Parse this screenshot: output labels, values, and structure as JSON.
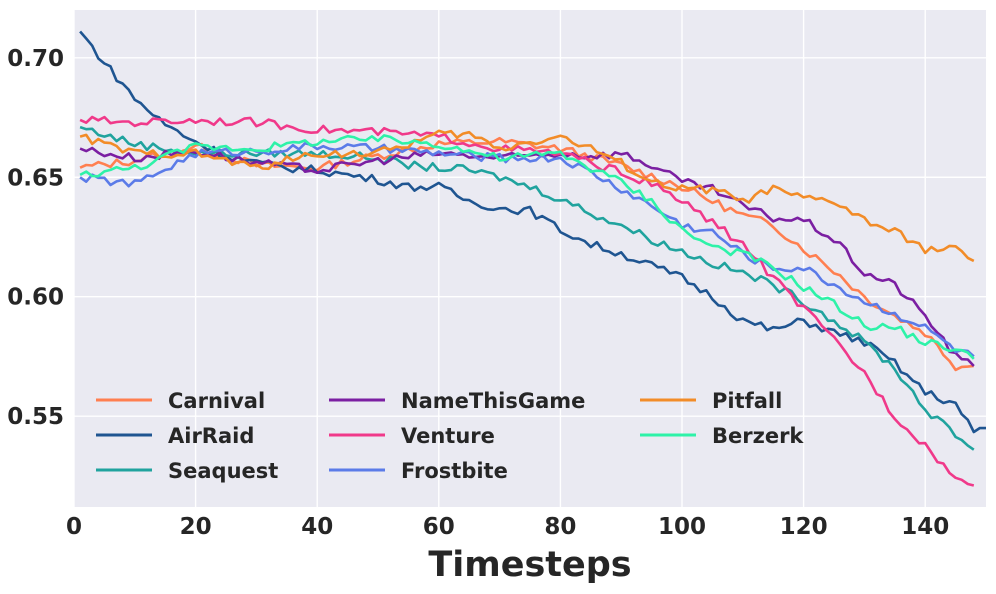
{
  "chart_data": {
    "type": "line",
    "title": "",
    "xlabel": "Timesteps",
    "ylabel": "",
    "xlim": [
      0,
      150
    ],
    "ylim": [
      0.512,
      0.72
    ],
    "xticks": [
      0,
      20,
      40,
      60,
      80,
      100,
      120,
      140
    ],
    "yticks": [
      0.55,
      0.6,
      0.65,
      0.7
    ],
    "ytick_labels": [
      "0.55",
      "0.60",
      "0.65",
      "0.70"
    ],
    "grid": true,
    "legend_placement": "lower-left, 3 columns",
    "background": "#eaeaf2",
    "series": [
      {
        "name": "Carnival",
        "color": "#ff7f50",
        "points": [
          [
            1,
            0.654
          ],
          [
            10,
            0.657
          ],
          [
            20,
            0.663
          ],
          [
            30,
            0.655
          ],
          [
            40,
            0.654
          ],
          [
            50,
            0.659
          ],
          [
            60,
            0.664
          ],
          [
            70,
            0.665
          ],
          [
            80,
            0.662
          ],
          [
            90,
            0.655
          ],
          [
            100,
            0.646
          ],
          [
            110,
            0.634
          ],
          [
            115,
            0.63
          ],
          [
            120,
            0.62
          ],
          [
            125,
            0.611
          ],
          [
            130,
            0.6
          ],
          [
            135,
            0.592
          ],
          [
            140,
            0.585
          ],
          [
            145,
            0.571
          ],
          [
            148,
            0.571
          ]
        ]
      },
      {
        "name": "AirRaid",
        "color": "#1f5591",
        "points": [
          [
            1,
            0.711
          ],
          [
            5,
            0.698
          ],
          [
            10,
            0.683
          ],
          [
            15,
            0.672
          ],
          [
            20,
            0.665
          ],
          [
            25,
            0.659
          ],
          [
            30,
            0.656
          ],
          [
            35,
            0.654
          ],
          [
            40,
            0.653
          ],
          [
            45,
            0.651
          ],
          [
            50,
            0.649
          ],
          [
            55,
            0.646
          ],
          [
            60,
            0.646
          ],
          [
            65,
            0.64
          ],
          [
            70,
            0.637
          ],
          [
            75,
            0.636
          ],
          [
            80,
            0.628
          ],
          [
            85,
            0.622
          ],
          [
            90,
            0.618
          ],
          [
            95,
            0.613
          ],
          [
            100,
            0.608
          ],
          [
            105,
            0.6
          ],
          [
            110,
            0.59
          ],
          [
            115,
            0.586
          ],
          [
            120,
            0.59
          ],
          [
            125,
            0.585
          ],
          [
            130,
            0.581
          ],
          [
            135,
            0.572
          ],
          [
            140,
            0.56
          ],
          [
            145,
            0.555
          ],
          [
            148,
            0.543
          ],
          [
            150,
            0.545
          ]
        ]
      },
      {
        "name": "Seaquest",
        "color": "#20a39e",
        "points": [
          [
            1,
            0.671
          ],
          [
            10,
            0.664
          ],
          [
            20,
            0.66
          ],
          [
            30,
            0.66
          ],
          [
            40,
            0.66
          ],
          [
            50,
            0.658
          ],
          [
            55,
            0.655
          ],
          [
            60,
            0.654
          ],
          [
            65,
            0.653
          ],
          [
            70,
            0.65
          ],
          [
            75,
            0.646
          ],
          [
            80,
            0.641
          ],
          [
            85,
            0.635
          ],
          [
            90,
            0.63
          ],
          [
            95,
            0.624
          ],
          [
            100,
            0.619
          ],
          [
            105,
            0.614
          ],
          [
            110,
            0.61
          ],
          [
            115,
            0.605
          ],
          [
            120,
            0.598
          ],
          [
            125,
            0.59
          ],
          [
            130,
            0.581
          ],
          [
            135,
            0.57
          ],
          [
            140,
            0.553
          ],
          [
            145,
            0.542
          ],
          [
            148,
            0.536
          ]
        ]
      },
      {
        "name": "NameThisGame",
        "color": "#7b1fa2",
        "points": [
          [
            1,
            0.662
          ],
          [
            10,
            0.658
          ],
          [
            20,
            0.661
          ],
          [
            30,
            0.656
          ],
          [
            40,
            0.653
          ],
          [
            50,
            0.657
          ],
          [
            60,
            0.66
          ],
          [
            70,
            0.658
          ],
          [
            80,
            0.66
          ],
          [
            85,
            0.659
          ],
          [
            90,
            0.66
          ],
          [
            95,
            0.655
          ],
          [
            100,
            0.648
          ],
          [
            105,
            0.645
          ],
          [
            110,
            0.638
          ],
          [
            115,
            0.633
          ],
          [
            120,
            0.632
          ],
          [
            125,
            0.624
          ],
          [
            130,
            0.61
          ],
          [
            135,
            0.605
          ],
          [
            140,
            0.592
          ],
          [
            145,
            0.575
          ],
          [
            148,
            0.571
          ]
        ]
      },
      {
        "name": "Venture",
        "color": "#f0398a",
        "points": [
          [
            1,
            0.674
          ],
          [
            10,
            0.673
          ],
          [
            20,
            0.674
          ],
          [
            30,
            0.673
          ],
          [
            40,
            0.67
          ],
          [
            50,
            0.669
          ],
          [
            60,
            0.667
          ],
          [
            70,
            0.662
          ],
          [
            80,
            0.66
          ],
          [
            85,
            0.656
          ],
          [
            90,
            0.652
          ],
          [
            95,
            0.647
          ],
          [
            100,
            0.64
          ],
          [
            105,
            0.631
          ],
          [
            110,
            0.622
          ],
          [
            115,
            0.608
          ],
          [
            120,
            0.595
          ],
          [
            125,
            0.582
          ],
          [
            130,
            0.568
          ],
          [
            135,
            0.55
          ],
          [
            140,
            0.538
          ],
          [
            145,
            0.524
          ],
          [
            148,
            0.521
          ]
        ]
      },
      {
        "name": "Frostbite",
        "color": "#5b7be8",
        "points": [
          [
            1,
            0.65
          ],
          [
            10,
            0.647
          ],
          [
            20,
            0.66
          ],
          [
            30,
            0.661
          ],
          [
            40,
            0.663
          ],
          [
            50,
            0.662
          ],
          [
            60,
            0.66
          ],
          [
            70,
            0.658
          ],
          [
            80,
            0.658
          ],
          [
            85,
            0.652
          ],
          [
            90,
            0.645
          ],
          [
            95,
            0.638
          ],
          [
            100,
            0.63
          ],
          [
            105,
            0.627
          ],
          [
            110,
            0.618
          ],
          [
            115,
            0.612
          ],
          [
            120,
            0.612
          ],
          [
            125,
            0.605
          ],
          [
            130,
            0.598
          ],
          [
            135,
            0.593
          ],
          [
            140,
            0.587
          ],
          [
            145,
            0.578
          ],
          [
            148,
            0.575
          ]
        ]
      },
      {
        "name": "Pitfall",
        "color": "#f28c28",
        "points": [
          [
            1,
            0.667
          ],
          [
            10,
            0.66
          ],
          [
            20,
            0.66
          ],
          [
            30,
            0.654
          ],
          [
            40,
            0.66
          ],
          [
            50,
            0.66
          ],
          [
            55,
            0.664
          ],
          [
            60,
            0.668
          ],
          [
            65,
            0.668
          ],
          [
            70,
            0.662
          ],
          [
            75,
            0.665
          ],
          [
            80,
            0.667
          ],
          [
            85,
            0.662
          ],
          [
            90,
            0.656
          ],
          [
            95,
            0.648
          ],
          [
            100,
            0.645
          ],
          [
            105,
            0.645
          ],
          [
            110,
            0.64
          ],
          [
            115,
            0.645
          ],
          [
            120,
            0.641
          ],
          [
            125,
            0.64
          ],
          [
            130,
            0.632
          ],
          [
            135,
            0.627
          ],
          [
            140,
            0.62
          ],
          [
            145,
            0.62
          ],
          [
            148,
            0.615
          ]
        ]
      },
      {
        "name": "Berzerk",
        "color": "#2ef2a8",
        "points": [
          [
            1,
            0.651
          ],
          [
            10,
            0.654
          ],
          [
            20,
            0.663
          ],
          [
            30,
            0.662
          ],
          [
            40,
            0.665
          ],
          [
            50,
            0.666
          ],
          [
            60,
            0.664
          ],
          [
            70,
            0.658
          ],
          [
            80,
            0.66
          ],
          [
            85,
            0.654
          ],
          [
            90,
            0.648
          ],
          [
            95,
            0.64
          ],
          [
            100,
            0.628
          ],
          [
            105,
            0.621
          ],
          [
            110,
            0.618
          ],
          [
            115,
            0.612
          ],
          [
            120,
            0.604
          ],
          [
            125,
            0.597
          ],
          [
            130,
            0.588
          ],
          [
            135,
            0.587
          ],
          [
            140,
            0.581
          ],
          [
            145,
            0.578
          ],
          [
            148,
            0.574
          ]
        ]
      }
    ]
  }
}
